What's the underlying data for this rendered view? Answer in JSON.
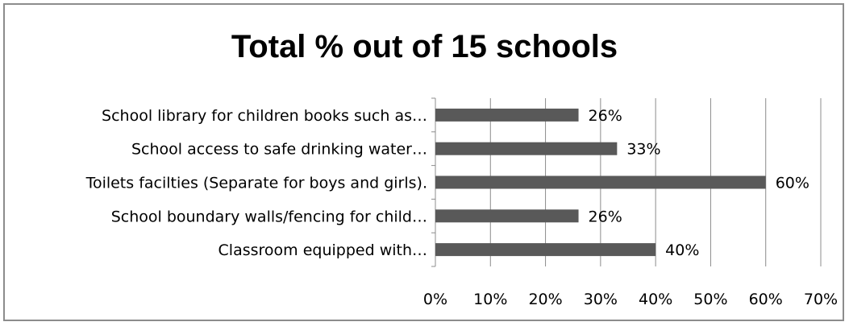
{
  "chart_data": {
    "type": "bar",
    "orientation": "horizontal",
    "title": "Total % out of 15 schools",
    "categories": [
      "School library for children books such as…",
      "School access to safe drinking water…",
      "Toilets facilties (Separate for boys and girls).",
      "School boundary walls/fencing for child…",
      "Classroom equipped with…"
    ],
    "values": [
      26,
      33,
      60,
      26,
      40
    ],
    "value_labels": [
      "26%",
      "33%",
      "60%",
      "26%",
      "40%"
    ],
    "xlim": [
      0,
      70
    ],
    "xticks": [
      0,
      10,
      20,
      30,
      40,
      50,
      60,
      70
    ],
    "xtick_labels": [
      "0%",
      "10%",
      "20%",
      "30%",
      "40%",
      "50%",
      "60%",
      "70%"
    ],
    "grid": true,
    "legend": "none",
    "bar_color": "#595959",
    "gridline_color": "#8c8c8c"
  }
}
